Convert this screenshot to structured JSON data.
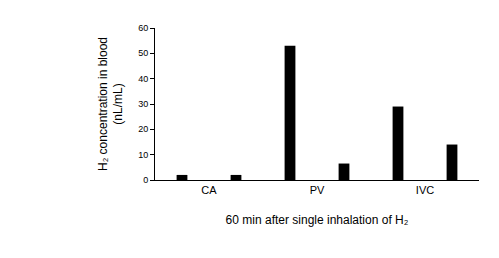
{
  "chart_data": {
    "type": "bar",
    "x_label": "60 min after single inhalation of H₂",
    "y_label": "H₂ concentration in blood\n(nL/mL)",
    "categories": [
      "CA",
      "PV",
      "IVC"
    ],
    "series": [
      {
        "color": "#000000",
        "values": [
          2,
          53,
          29
        ]
      },
      {
        "color": "#000000",
        "values": [
          2,
          6.5,
          14
        ]
      }
    ],
    "ylim": [
      0,
      60
    ],
    "yticks": [
      0,
      10,
      20,
      30,
      40,
      50,
      60
    ],
    "grid": false
  }
}
